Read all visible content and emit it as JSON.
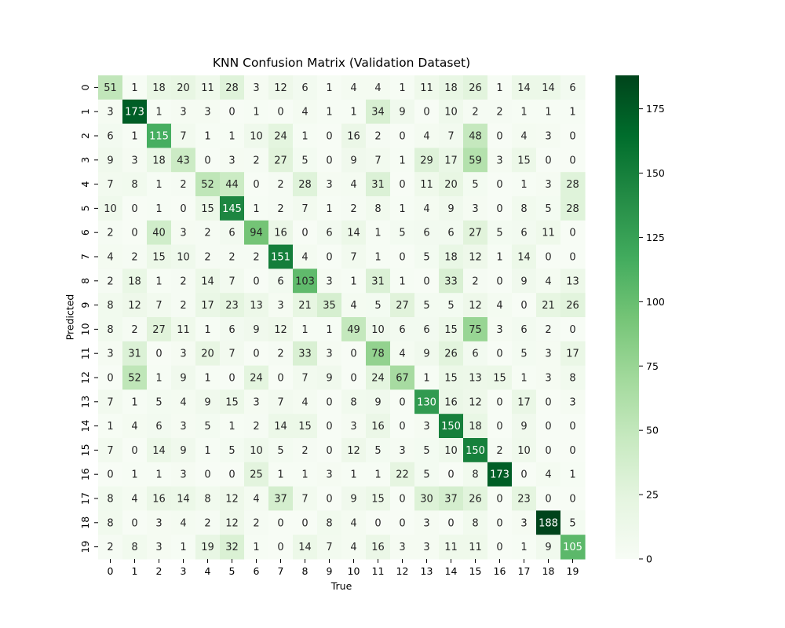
{
  "chart_data": {
    "type": "heatmap",
    "title": "KNN Confusion Matrix (Validation Dataset)",
    "xlabel": "True",
    "ylabel": "Predicted",
    "x_categories": [
      "0",
      "1",
      "2",
      "3",
      "4",
      "5",
      "6",
      "7",
      "8",
      "9",
      "10",
      "11",
      "12",
      "13",
      "14",
      "15",
      "16",
      "17",
      "18",
      "19"
    ],
    "y_categories": [
      "0",
      "1",
      "2",
      "3",
      "4",
      "5",
      "6",
      "7",
      "8",
      "9",
      "10",
      "11",
      "12",
      "13",
      "14",
      "15",
      "16",
      "17",
      "18",
      "19"
    ],
    "matrix": [
      [
        51,
        1,
        18,
        20,
        11,
        28,
        3,
        12,
        6,
        1,
        4,
        4,
        1,
        11,
        18,
        26,
        1,
        14,
        14,
        6
      ],
      [
        3,
        173,
        1,
        3,
        3,
        0,
        1,
        0,
        4,
        1,
        1,
        34,
        9,
        0,
        10,
        2,
        2,
        1,
        1,
        1
      ],
      [
        6,
        1,
        115,
        7,
        1,
        1,
        10,
        24,
        1,
        0,
        16,
        2,
        0,
        4,
        7,
        48,
        0,
        4,
        3,
        0
      ],
      [
        9,
        3,
        18,
        43,
        0,
        3,
        2,
        27,
        5,
        0,
        9,
        7,
        1,
        29,
        17,
        59,
        3,
        15,
        0,
        0
      ],
      [
        7,
        8,
        1,
        2,
        52,
        44,
        0,
        2,
        28,
        3,
        4,
        31,
        0,
        11,
        20,
        5,
        0,
        1,
        3,
        28
      ],
      [
        10,
        0,
        1,
        0,
        15,
        145,
        1,
        2,
        7,
        1,
        2,
        8,
        1,
        4,
        9,
        3,
        0,
        8,
        5,
        28
      ],
      [
        2,
        0,
        40,
        3,
        2,
        6,
        94,
        16,
        0,
        6,
        14,
        1,
        5,
        6,
        6,
        27,
        5,
        6,
        11,
        0
      ],
      [
        4,
        2,
        15,
        10,
        2,
        2,
        2,
        151,
        4,
        0,
        7,
        1,
        0,
        5,
        18,
        12,
        1,
        14,
        0,
        0
      ],
      [
        2,
        18,
        1,
        2,
        14,
        7,
        0,
        6,
        103,
        3,
        1,
        31,
        1,
        0,
        33,
        2,
        0,
        9,
        4,
        13
      ],
      [
        8,
        12,
        7,
        2,
        17,
        23,
        13,
        3,
        21,
        35,
        4,
        5,
        27,
        5,
        5,
        12,
        4,
        0,
        21,
        26
      ],
      [
        8,
        2,
        27,
        11,
        1,
        6,
        9,
        12,
        1,
        1,
        49,
        10,
        6,
        6,
        15,
        75,
        3,
        6,
        2,
        0
      ],
      [
        3,
        31,
        0,
        3,
        20,
        7,
        0,
        2,
        33,
        3,
        0,
        78,
        4,
        9,
        26,
        6,
        0,
        5,
        3,
        17
      ],
      [
        0,
        52,
        1,
        9,
        1,
        0,
        24,
        0,
        7,
        9,
        0,
        24,
        67,
        1,
        15,
        13,
        15,
        1,
        3,
        8
      ],
      [
        7,
        1,
        5,
        4,
        9,
        15,
        3,
        7,
        4,
        0,
        8,
        9,
        0,
        130,
        16,
        12,
        0,
        17,
        0,
        3
      ],
      [
        1,
        4,
        6,
        3,
        5,
        1,
        2,
        14,
        15,
        0,
        3,
        16,
        0,
        3,
        150,
        18,
        0,
        9,
        0,
        0
      ],
      [
        7,
        0,
        14,
        9,
        1,
        5,
        10,
        5,
        2,
        0,
        12,
        5,
        3,
        5,
        10,
        150,
        2,
        10,
        0,
        0
      ],
      [
        0,
        1,
        1,
        3,
        0,
        0,
        25,
        1,
        1,
        3,
        1,
        1,
        22,
        5,
        0,
        8,
        173,
        0,
        4,
        1
      ],
      [
        8,
        4,
        16,
        14,
        8,
        12,
        4,
        37,
        7,
        0,
        9,
        15,
        0,
        30,
        37,
        26,
        0,
        23,
        0,
        0
      ],
      [
        8,
        0,
        3,
        4,
        2,
        12,
        2,
        0,
        0,
        8,
        4,
        0,
        0,
        3,
        0,
        8,
        0,
        3,
        188,
        5
      ],
      [
        2,
        8,
        3,
        1,
        19,
        32,
        1,
        0,
        14,
        7,
        4,
        16,
        3,
        3,
        11,
        11,
        0,
        1,
        9,
        105
      ]
    ],
    "colormap": "Greens",
    "color_low": "#f7fcf5",
    "color_high": "#00441b",
    "vmin": 0,
    "vmax": 188,
    "colorbar_ticks": [
      0,
      25,
      50,
      75,
      100,
      125,
      150,
      175
    ],
    "grid": false
  }
}
